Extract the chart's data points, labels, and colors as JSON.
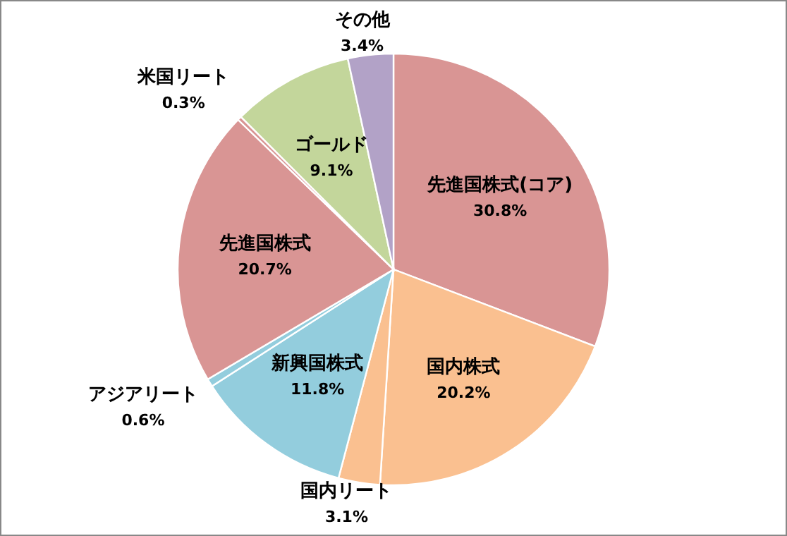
{
  "chart_data": {
    "type": "pie",
    "categories": [
      "先進国株式(コア)",
      "国内株式",
      "国内リート",
      "新興国株式",
      "アジアリート",
      "先進国株式",
      "米国リート",
      "ゴールド",
      "その他"
    ],
    "values": [
      30.8,
      20.2,
      3.1,
      11.8,
      0.6,
      20.7,
      0.3,
      9.1,
      3.4
    ],
    "value_labels": [
      "30.8%",
      "20.2%",
      "3.1%",
      "11.8%",
      "0.6%",
      "20.7%",
      "0.3%",
      "9.1%",
      "3.4%"
    ],
    "colors": [
      "#d99594",
      "#fac090",
      "#fac090",
      "#93cddd",
      "#93cddd",
      "#d99594",
      "#d99594",
      "#c3d69b",
      "#b2a2c7"
    ]
  }
}
